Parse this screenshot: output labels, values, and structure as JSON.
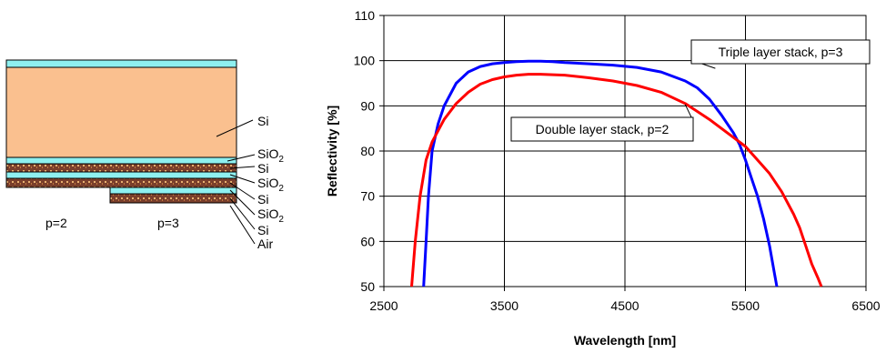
{
  "diagram": {
    "layer_labels": [
      "Si",
      "SiO",
      "Si",
      "SiO",
      "Si",
      "SiO",
      "Si",
      "Air"
    ],
    "layer_subscripts": [
      "",
      "2",
      "",
      "2",
      "",
      "2",
      "",
      ""
    ],
    "stack_labels": [
      "p=2",
      "p=3"
    ],
    "colors": {
      "si_bulk": "#FAC08F",
      "sio2": "#8EF0F0",
      "si_thin": "#7A3F2C",
      "outline": "#000000"
    }
  },
  "chart_data": {
    "type": "line",
    "xlabel": "Wavelength [nm]",
    "ylabel": "Reflectivity [%]",
    "xlim": [
      2500,
      6500
    ],
    "ylim": [
      50,
      110
    ],
    "xticks": [
      2500,
      3500,
      4500,
      5500,
      6500
    ],
    "yticks": [
      50,
      60,
      70,
      80,
      90,
      100,
      110
    ],
    "grid": true,
    "series": [
      {
        "name": "Triple layer stack, p=3",
        "color": "#0000FF",
        "x": [
          2830,
          2850,
          2870,
          2900,
          2950,
          3000,
          3100,
          3200,
          3300,
          3400,
          3500,
          3600,
          3700,
          3800,
          3900,
          4000,
          4200,
          4400,
          4600,
          4800,
          5000,
          5100,
          5200,
          5300,
          5400,
          5450,
          5500,
          5550,
          5600,
          5650,
          5700,
          5740,
          5760
        ],
        "y": [
          50,
          60,
          70,
          80,
          86,
          90,
          95,
          97.5,
          98.7,
          99.3,
          99.6,
          99.8,
          99.9,
          99.9,
          99.8,
          99.6,
          99.3,
          99,
          98.5,
          97.5,
          95.5,
          94,
          91.5,
          88,
          84,
          81.5,
          78,
          74,
          70,
          65,
          59,
          53,
          50
        ]
      },
      {
        "name": "Double layer stack, p=2",
        "color": "#FF0000",
        "x": [
          2730,
          2760,
          2800,
          2850,
          2900,
          3000,
          3100,
          3200,
          3300,
          3400,
          3500,
          3600,
          3700,
          3800,
          4000,
          4200,
          4400,
          4600,
          4800,
          5000,
          5200,
          5400,
          5500,
          5600,
          5700,
          5800,
          5900,
          5950,
          6000,
          6050,
          6100,
          6130
        ],
        "y": [
          50,
          60,
          70,
          78,
          82,
          87,
          90.5,
          93,
          94.8,
          95.8,
          96.4,
          96.8,
          97,
          97,
          96.8,
          96.2,
          95.5,
          94.5,
          93,
          90.5,
          87,
          83,
          81,
          78,
          75,
          71,
          66,
          63,
          59,
          55,
          52,
          50
        ]
      }
    ],
    "annotations": [
      {
        "text": "Triple layer stack, p=3",
        "series": 0
      },
      {
        "text": "Double layer stack, p=2",
        "series": 1
      }
    ]
  }
}
